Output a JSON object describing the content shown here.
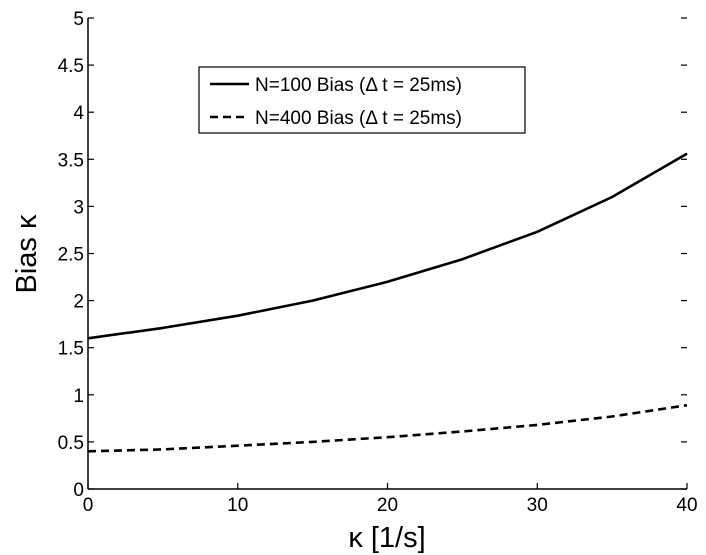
{
  "chart_data": {
    "type": "line",
    "title": "",
    "xlabel": "κ [1/s]",
    "ylabel": "Bias κ",
    "xlim": [
      0,
      40
    ],
    "ylim": [
      0,
      5
    ],
    "xticks": [
      0,
      10,
      20,
      30,
      40
    ],
    "yticks": [
      0,
      0.5,
      1,
      1.5,
      2,
      2.5,
      3,
      3.5,
      4,
      4.5,
      5
    ],
    "xtick_labels": [
      "0",
      "10",
      "20",
      "30",
      "40"
    ],
    "ytick_labels": [
      "0",
      "0.5",
      "1",
      "1.5",
      "2",
      "2.5",
      "3",
      "3.5",
      "4",
      "4.5",
      "5"
    ],
    "grid": false,
    "legend_position": "top-center",
    "x": [
      0,
      5,
      10,
      15,
      20,
      25,
      30,
      35,
      40
    ],
    "series": [
      {
        "name": "N=100 Bias (Δ t = 25ms)",
        "style": "solid",
        "color": "#000000",
        "values": [
          1.6,
          1.71,
          1.84,
          2.0,
          2.2,
          2.44,
          2.73,
          3.1,
          3.56
        ]
      },
      {
        "name": "N=400 Bias (Δ t = 25ms)",
        "style": "dashed",
        "color": "#000000",
        "values": [
          0.4,
          0.42,
          0.46,
          0.5,
          0.55,
          0.61,
          0.68,
          0.77,
          0.89
        ]
      }
    ]
  }
}
